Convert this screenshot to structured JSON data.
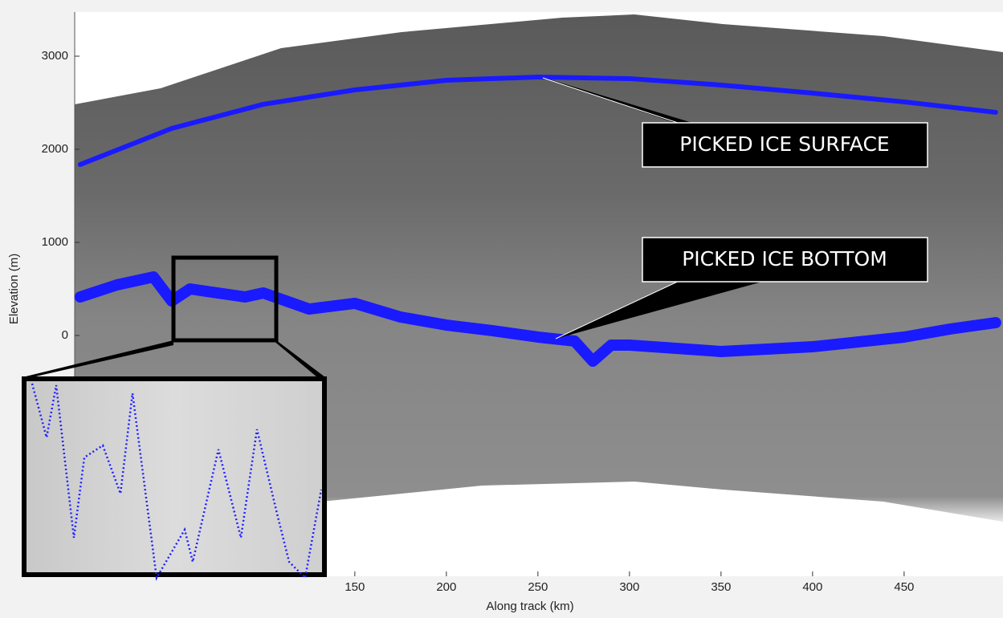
{
  "chart_data": {
    "type": "line",
    "xlabel": "Along track (km)",
    "ylabel": "Elevation (m)",
    "xlim": [
      -3,
      504
    ],
    "ylim": [
      -2586,
      3474
    ],
    "xticks": [
      150,
      200,
      250,
      300,
      350,
      400,
      450
    ],
    "yticks": [
      0,
      1000,
      2000,
      3000
    ],
    "annotations": [
      "PICKED ICE SURFACE",
      "PICKED ICE BOTTOM"
    ],
    "series": [
      {
        "color": "#1a1aff",
        "width": 6,
        "x": [
          0,
          50,
          100,
          150,
          200,
          250,
          300,
          350,
          400,
          450,
          500
        ],
        "values": [
          1836,
          2224,
          2483,
          2638,
          2741,
          2776,
          2759,
          2690,
          2603,
          2509,
          2397
        ]
      },
      {
        "color": "#1a1aff",
        "width": 14,
        "x": [
          0,
          20,
          40,
          50,
          60,
          75,
          90,
          100,
          125,
          150,
          175,
          200,
          225,
          250,
          270,
          280,
          290,
          300,
          350,
          400,
          450,
          475,
          500
        ],
        "values": [
          414,
          543,
          629,
          371,
          500,
          457,
          414,
          457,
          284,
          345,
          198,
          112,
          52,
          -17,
          -60,
          -276,
          -103,
          -103,
          -172,
          -121,
          -17,
          69,
          138
        ]
      }
    ]
  }
}
